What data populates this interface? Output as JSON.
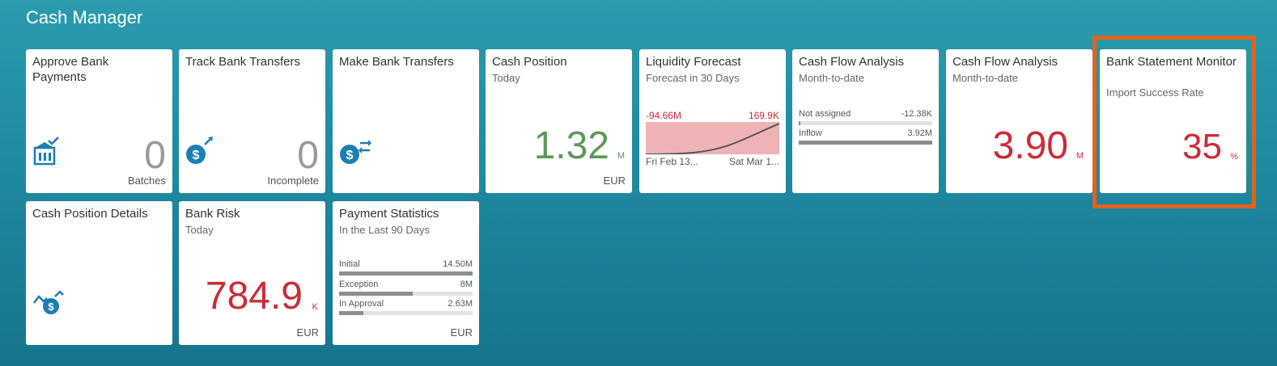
{
  "page": {
    "title": "Cash Manager"
  },
  "colors": {
    "accent": "#1c7fb3",
    "negative": "#cc2b36",
    "positive": "#5b9a59",
    "highlight": "#e2621b"
  },
  "tiles": {
    "approve": {
      "title": "Approve Bank Payments",
      "value": "0",
      "footer": "Batches",
      "icon": "bank-building-check-icon"
    },
    "track": {
      "title": "Track Bank Transfers",
      "value": "0",
      "footer": "Incomplete",
      "icon": "money-arrow-icon"
    },
    "make": {
      "title": "Make Bank Transfers",
      "icon": "money-transfer-icon"
    },
    "cashpos": {
      "title": "Cash Position",
      "subtitle": "Today",
      "value": "1.32",
      "unit": "M",
      "footer": "EUR"
    },
    "liquidity": {
      "title": "Liquidity Forecast",
      "subtitle": "Forecast in 30 Days",
      "left_value": "-94.66M",
      "right_value": "169.9K",
      "start_label": "Fri Feb 13...",
      "end_label": "Sat Mar 1..."
    },
    "cfa1": {
      "title": "Cash Flow Analysis",
      "subtitle": "Month-to-date",
      "rows": [
        {
          "label": "Not assigned",
          "value": "-12.38K",
          "fraction": 0.01
        },
        {
          "label": "Inflow",
          "value": "3.92M",
          "fraction": 1.0
        }
      ]
    },
    "cfa2": {
      "title": "Cash Flow Analysis",
      "subtitle": "Month-to-date",
      "value": "3.90",
      "unit": "M"
    },
    "bsm": {
      "title": "Bank Statement Monitor",
      "subtitle": "Import Success Rate",
      "value": "35",
      "unit": "%"
    },
    "cpd": {
      "title": "Cash Position Details",
      "icon": "money-trend-icon"
    },
    "risk": {
      "title": "Bank Risk",
      "subtitle": "Today",
      "value": "784.9",
      "unit": "K",
      "footer": "EUR"
    },
    "payments": {
      "title": "Payment Statistics",
      "subtitle": "In the Last 90 Days",
      "footer": "EUR",
      "rows": [
        {
          "label": "Initial",
          "value": "14.50M",
          "fraction": 1.0
        },
        {
          "label": "Exception",
          "value": "8M",
          "fraction": 0.55
        },
        {
          "label": "In Approval",
          "value": "2.63M",
          "fraction": 0.18
        }
      ]
    }
  }
}
